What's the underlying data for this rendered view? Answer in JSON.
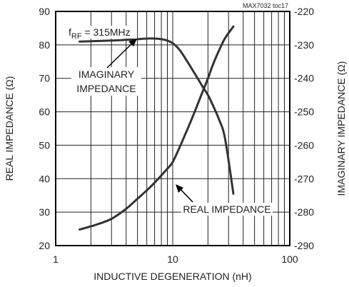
{
  "chart_data": {
    "type": "line",
    "figure_id": "MAX7032 toc17",
    "xlabel": "INDUCTIVE DEGENERATION (nH)",
    "ylabel_left": "REAL IMPEDANCE (Ω)",
    "ylabel_right": "IMAGINARY IMPEDANCE (Ω)",
    "x_scale": "log",
    "xlim": [
      1,
      100
    ],
    "ylim_left": [
      20,
      90
    ],
    "ylim_right": [
      -290,
      -220
    ],
    "grid": true,
    "x_tick_labels": [
      "1",
      "10",
      "100"
    ],
    "x_tick_values": [
      1,
      10,
      100
    ],
    "y_left_tick_labels": [
      "20",
      "30",
      "40",
      "50",
      "60",
      "70",
      "80",
      "90"
    ],
    "y_left_tick_values": [
      20,
      30,
      40,
      50,
      60,
      70,
      80,
      90
    ],
    "y_right_tick_labels": [
      "-290",
      "-280",
      "-270",
      "-260",
      "-250",
      "-240",
      "-230",
      "-220"
    ],
    "y_right_tick_values": [
      -290,
      -280,
      -270,
      -260,
      -250,
      -240,
      -230,
      -220
    ],
    "annotations": {
      "frequency_prefix": "f",
      "frequency_subscript": "RF",
      "frequency_value": " = 315MHz",
      "imaginary_line1": "IMAGINARY",
      "imaginary_line2": "IMPEDANCE",
      "real": "REAL IMPEDANCE"
    },
    "series": [
      {
        "axis": "left",
        "x": [
          1.6,
          2.2,
          3,
          4,
          5,
          6,
          7,
          8,
          9,
          10,
          12,
          15,
          18,
          20,
          22,
          25,
          28,
          33
        ],
        "y": [
          24.8,
          26.2,
          28,
          31,
          34,
          36.5,
          38.8,
          41,
          43,
          45,
          51,
          59,
          66,
          70,
          74,
          78.5,
          82,
          85.5
        ]
      },
      {
        "axis": "right",
        "x": [
          1.6,
          2,
          3,
          4,
          5,
          6,
          7,
          8,
          9,
          10,
          11,
          12,
          14,
          16,
          18,
          20,
          22,
          25,
          28,
          33
        ],
        "y": [
          -229,
          -228.9,
          -228.7,
          -228.5,
          -228.3,
          -228.1,
          -228.1,
          -228.3,
          -228.7,
          -229.5,
          -230.8,
          -232.5,
          -236.2,
          -239.5,
          -242.5,
          -245,
          -248,
          -252.5,
          -258,
          -274.5
        ]
      }
    ]
  }
}
